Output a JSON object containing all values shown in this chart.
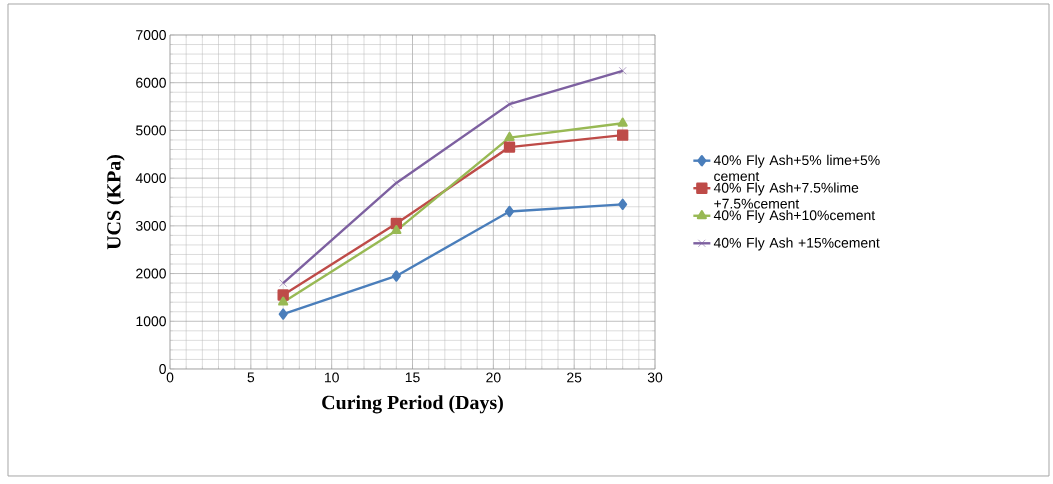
{
  "chart_data": {
    "type": "line",
    "xlabel": "Curing Period (Days)",
    "ylabel": "UCS (KPa)",
    "x": [
      7,
      14,
      21,
      28
    ],
    "xlim": [
      0,
      30
    ],
    "xticks": [
      0,
      5,
      10,
      15,
      20,
      25,
      30
    ],
    "ylim": [
      0,
      7000
    ],
    "yticks": [
      0,
      1000,
      2000,
      3000,
      4000,
      5000,
      6000,
      7000
    ],
    "grid": true,
    "legend": "right",
    "line_style": "solid",
    "series": [
      {
        "name": "40% Fly Ash+5% lime+5% cement",
        "color": "#4a7ebb",
        "marker": "diamond",
        "values": [
          1150,
          1950,
          3300,
          3450
        ]
      },
      {
        "name": "40% Fly Ash+7.5%lime +7.5%cement",
        "color": "#be4b48",
        "marker": "square",
        "values": [
          1550,
          3050,
          4650,
          4900
        ]
      },
      {
        "name": "40% Fly Ash+10%cement",
        "color": "#98b954",
        "marker": "triangle",
        "values": [
          1400,
          2900,
          4850,
          5150
        ]
      },
      {
        "name": "40% Fly Ash +15%cement",
        "color": "#7d60a0",
        "marker": "cross",
        "values": [
          1800,
          3900,
          5550,
          6250
        ]
      }
    ]
  }
}
